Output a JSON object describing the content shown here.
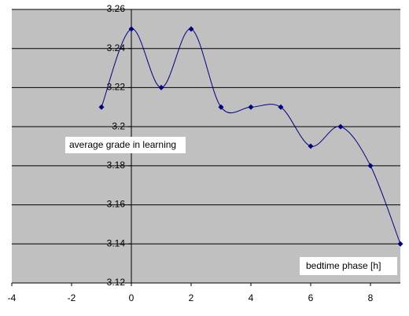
{
  "chart_data": {
    "type": "line",
    "x_label": "bedtime phase [h]",
    "y_label": "average grade in learning",
    "x": [
      -1,
      0,
      1,
      2,
      3,
      4,
      5,
      6,
      7,
      8,
      9
    ],
    "series": [
      {
        "color": "#000080",
        "values": [
          3.21,
          3.25,
          3.22,
          3.25,
          3.21,
          3.21,
          3.21,
          3.19,
          3.2,
          3.18,
          3.14
        ]
      }
    ],
    "xlim": [
      -4,
      9
    ],
    "xticks": [
      -4,
      -2,
      0,
      2,
      4,
      6,
      8
    ],
    "ylim": [
      3.12,
      3.26
    ],
    "yticks": [
      3.26,
      3.24,
      3.22,
      3.2,
      3.18,
      3.16,
      3.14,
      3.12
    ],
    "grid": true,
    "smooth": true
  }
}
